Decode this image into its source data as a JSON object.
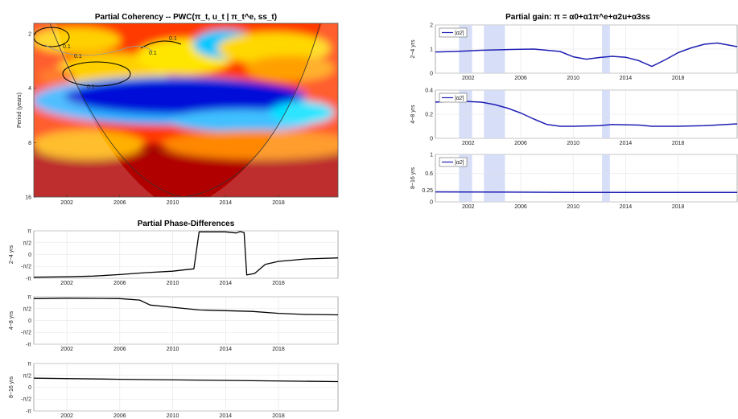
{
  "chart_data": [
    {
      "id": "coherency",
      "type": "heatmap",
      "title": "Partial Coherency -- PWC(π_t, u_t | π_t^e, ss_t)",
      "ylabel": "Period (years)",
      "x_ticks": [
        "2002",
        "2006",
        "2010",
        "2014",
        "2018"
      ],
      "y_ticks": [
        "2",
        "4",
        "8",
        "16"
      ],
      "xlim": [
        1999.5,
        2022.5
      ],
      "colormap": "jet",
      "contour_labels": [
        "0.1",
        "0.1",
        "0.1",
        "0.1",
        "0.1"
      ]
    },
    {
      "id": "phase",
      "type": "line",
      "title": "Partial Phase-Differences",
      "x_ticks": [
        "2002",
        "2006",
        "2010",
        "2014",
        "2018"
      ],
      "y_ticks": [
        "π",
        "π/2",
        "0",
        "-π/2",
        "-π"
      ],
      "ylim": [
        -3.1416,
        3.1416
      ],
      "xlim": [
        1999.5,
        2022.5
      ],
      "panels": [
        {
          "ylabel": "2~4 yrs",
          "x": [
            1999.5,
            2002,
            2004,
            2006,
            2008,
            2010,
            2011,
            2011.6,
            2012.0,
            2013,
            2014,
            2014.8,
            2015.1,
            2015.4,
            2015.6,
            2016.2,
            2017,
            2018,
            2020,
            2022.5
          ],
          "y": [
            -3.0,
            -2.95,
            -2.85,
            -2.65,
            -2.4,
            -2.2,
            -2.0,
            -1.9,
            3.0,
            3.0,
            3.0,
            2.85,
            3.05,
            2.9,
            -2.7,
            -2.5,
            -1.3,
            -0.9,
            -0.6,
            -0.45
          ]
        },
        {
          "ylabel": "4~8 yrs",
          "x": [
            1999.5,
            2002,
            2006,
            2007.5,
            2008.3,
            2010,
            2012,
            2014,
            2016,
            2018,
            2020,
            2022.5
          ],
          "y": [
            2.9,
            2.95,
            2.9,
            2.7,
            2.05,
            1.75,
            1.4,
            1.3,
            1.2,
            0.95,
            0.8,
            0.75
          ]
        },
        {
          "ylabel": "8~16 yrs",
          "x": [
            1999.5,
            2006,
            2014,
            2022.5
          ],
          "y": [
            1.2,
            1.05,
            0.9,
            0.75
          ]
        }
      ]
    },
    {
      "id": "gain",
      "type": "line",
      "title": "Partial gain: π = α0+α1π^e+α2u+α3ss",
      "x_ticks": [
        "2002",
        "2006",
        "2010",
        "2014",
        "2018"
      ],
      "xlim": [
        1999.5,
        2022.5
      ],
      "panels": [
        {
          "ylabel": "2~4 yrs",
          "legend": "|α2|",
          "ylim": [
            0,
            2
          ],
          "y_ticks": [
            "0",
            "1",
            "2"
          ],
          "x": [
            1999.5,
            2001,
            2003,
            2005,
            2007,
            2009,
            2010,
            2011,
            2012,
            2013,
            2014,
            2015,
            2016,
            2017,
            2018,
            2019,
            2020,
            2021,
            2022.5
          ],
          "y": [
            0.88,
            0.9,
            0.95,
            0.98,
            1.0,
            0.9,
            0.68,
            0.58,
            0.65,
            0.7,
            0.66,
            0.52,
            0.28,
            0.55,
            0.85,
            1.05,
            1.2,
            1.25,
            1.1
          ]
        },
        {
          "ylabel": "4~8 yrs",
          "legend": "|α2|",
          "ylim": [
            0,
            0.4
          ],
          "y_ticks": [
            "0",
            "0.2",
            "0.4"
          ],
          "x": [
            1999.5,
            2001,
            2003,
            2004,
            2005,
            2006,
            2007,
            2008,
            2009,
            2010,
            2012,
            2013,
            2015,
            2016,
            2018,
            2020,
            2022.5
          ],
          "y": [
            0.3,
            0.31,
            0.3,
            0.28,
            0.25,
            0.21,
            0.16,
            0.115,
            0.1,
            0.1,
            0.105,
            0.115,
            0.11,
            0.1,
            0.1,
            0.105,
            0.12
          ]
        },
        {
          "ylabel": "8~16 yrs",
          "legend": "|α2|",
          "ylim": [
            0,
            1
          ],
          "y_ticks": [
            "0",
            "0.25",
            "0.6",
            "1"
          ],
          "x": [
            1999.5,
            2010,
            2022.5
          ],
          "y": [
            0.21,
            0.2,
            0.2
          ]
        }
      ],
      "shaded_bands": [
        [
          2001.3,
          2002.3
        ],
        [
          2003.2,
          2004.8
        ],
        [
          2012.2,
          2012.8
        ]
      ]
    }
  ],
  "colors": {
    "phase_line": "#000000",
    "gain_line": "#1f1fb4",
    "band": "#c8d3f6",
    "grid": "#e4e4e4"
  }
}
